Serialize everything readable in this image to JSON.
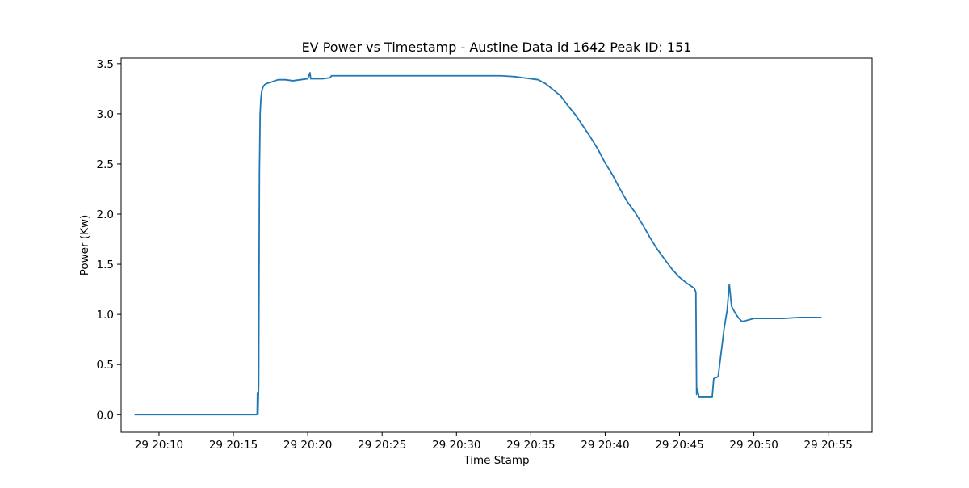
{
  "chart_data": {
    "type": "line",
    "title": "EV Power vs Timestamp - Austine Data id 1642 Peak ID: 151",
    "xlabel": "Time Stamp",
    "ylabel": "Power (Kw)",
    "x_unit": "minutes past 20:00 on day 29",
    "xlim": [
      7.45,
      57.95
    ],
    "ylim": [
      -0.175,
      3.555
    ],
    "grid": false,
    "x_ticks": [
      {
        "value": 10,
        "label": "29 20:10"
      },
      {
        "value": 15,
        "label": "29 20:15"
      },
      {
        "value": 20,
        "label": "29 20:20"
      },
      {
        "value": 25,
        "label": "29 20:25"
      },
      {
        "value": 30,
        "label": "29 20:30"
      },
      {
        "value": 35,
        "label": "29 20:35"
      },
      {
        "value": 40,
        "label": "29 20:40"
      },
      {
        "value": 45,
        "label": "29 20:45"
      },
      {
        "value": 50,
        "label": "29 20:50"
      },
      {
        "value": 55,
        "label": "29 20:55"
      }
    ],
    "y_ticks": [
      {
        "value": 0.0,
        "label": "0.0"
      },
      {
        "value": 0.5,
        "label": "0.5"
      },
      {
        "value": 1.0,
        "label": "1.0"
      },
      {
        "value": 1.5,
        "label": "1.5"
      },
      {
        "value": 2.0,
        "label": "2.0"
      },
      {
        "value": 2.5,
        "label": "2.5"
      },
      {
        "value": 3.0,
        "label": "3.0"
      },
      {
        "value": 3.5,
        "label": "3.5"
      }
    ],
    "series": [
      {
        "color": "#1f77b4",
        "x": [
          8.4,
          10,
          12,
          14,
          16,
          16.55,
          16.6,
          16.62,
          16.65,
          16.7,
          16.75,
          16.8,
          16.85,
          16.9,
          17.0,
          17.1,
          17.2,
          17.4,
          17.6,
          17.8,
          18.0,
          18.5,
          19.0,
          19.5,
          20.0,
          20.15,
          20.2,
          20.25,
          20.3,
          21.0,
          21.5,
          21.6,
          22.0,
          25.0,
          28.0,
          31.0,
          33.0,
          34.0,
          34.5,
          35.0,
          35.5,
          36.0,
          36.5,
          37.0,
          37.5,
          38.0,
          38.5,
          39.0,
          39.5,
          40.0,
          40.5,
          41.0,
          41.5,
          42.0,
          42.5,
          43.0,
          43.5,
          44.0,
          44.5,
          45.0,
          45.5,
          46.0,
          46.1,
          46.15,
          46.2,
          46.3,
          46.35,
          46.4,
          47.2,
          47.3,
          47.6,
          47.8,
          48.0,
          48.2,
          48.35,
          48.5,
          48.8,
          49.0,
          49.2,
          49.5,
          50.0,
          51.0,
          52.0,
          53.0,
          54.0,
          54.5
        ],
        "y": [
          0.0,
          0.0,
          0.0,
          0.0,
          0.0,
          0.0,
          0.01,
          0.22,
          0.0,
          0.3,
          2.4,
          3.0,
          3.15,
          3.22,
          3.27,
          3.29,
          3.3,
          3.31,
          3.32,
          3.33,
          3.34,
          3.34,
          3.33,
          3.34,
          3.35,
          3.41,
          3.35,
          3.35,
          3.35,
          3.35,
          3.36,
          3.38,
          3.38,
          3.38,
          3.38,
          3.38,
          3.38,
          3.37,
          3.36,
          3.35,
          3.34,
          3.3,
          3.24,
          3.18,
          3.08,
          2.99,
          2.88,
          2.77,
          2.65,
          2.51,
          2.39,
          2.25,
          2.12,
          2.02,
          1.9,
          1.77,
          1.65,
          1.55,
          1.45,
          1.37,
          1.31,
          1.26,
          1.22,
          0.2,
          0.26,
          0.18,
          0.18,
          0.18,
          0.18,
          0.36,
          0.38,
          0.62,
          0.86,
          1.04,
          1.3,
          1.08,
          1.0,
          0.96,
          0.93,
          0.94,
          0.96,
          0.96,
          0.96,
          0.97,
          0.97,
          0.97
        ]
      }
    ]
  }
}
